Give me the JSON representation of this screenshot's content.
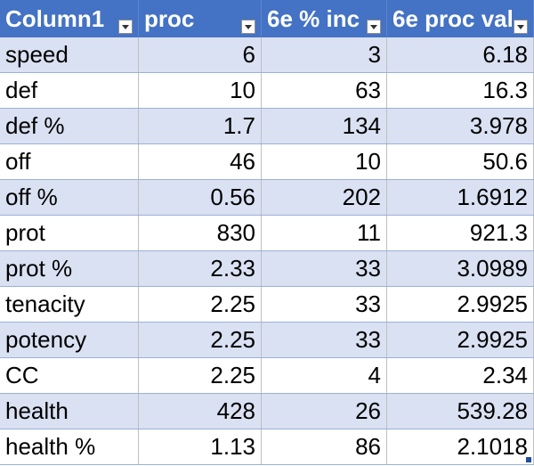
{
  "table": {
    "headers": [
      "Column1",
      "proc",
      "6e % inc",
      "6e proc val"
    ],
    "filter_icon": "dropdown-arrow-icon",
    "rows": [
      [
        "speed",
        "6",
        "3",
        "6.18"
      ],
      [
        "def",
        "10",
        "63",
        "16.3"
      ],
      [
        "def %",
        "1.7",
        "134",
        "3.978"
      ],
      [
        "off",
        "46",
        "10",
        "50.6"
      ],
      [
        "off %",
        "0.56",
        "202",
        "1.6912"
      ],
      [
        "prot",
        "830",
        "11",
        "921.3"
      ],
      [
        "prot %",
        "2.33",
        "33",
        "3.0989"
      ],
      [
        "tenacity",
        "2.25",
        "33",
        "2.9925"
      ],
      [
        "potency",
        "2.25",
        "33",
        "2.9925"
      ],
      [
        "CC",
        "2.25",
        "4",
        "2.34"
      ],
      [
        "health",
        "428",
        "26",
        "539.28"
      ],
      [
        "health %",
        "1.13",
        "86",
        "2.1018"
      ]
    ]
  },
  "colors": {
    "header_bg": "#4472c4",
    "header_text": "#ffffff",
    "band_bg": "#d9e1f2",
    "plain_bg": "#ffffff"
  }
}
